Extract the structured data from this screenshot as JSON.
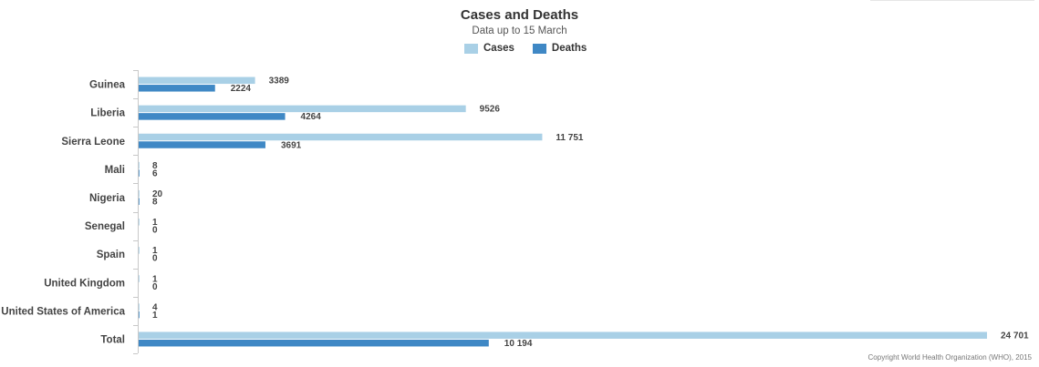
{
  "chart_data": {
    "type": "bar",
    "orientation": "horizontal",
    "title": "Cases and Deaths",
    "subtitle": "Data up to 15 March",
    "categories": [
      "Guinea",
      "Liberia",
      "Sierra Leone",
      "Mali",
      "Nigeria",
      "Senegal",
      "Spain",
      "United Kingdom",
      "United States of America",
      "Total"
    ],
    "series": [
      {
        "name": "Cases",
        "color": "#a9d0e6",
        "values": [
          3389,
          9526,
          11751,
          8,
          20,
          1,
          1,
          1,
          4,
          24701
        ],
        "labels": [
          "3389",
          "9526",
          "11 751",
          "8",
          "20",
          "1",
          "1",
          "1",
          "4",
          "24 701"
        ]
      },
      {
        "name": "Deaths",
        "color": "#3f88c5",
        "values": [
          2224,
          4264,
          3691,
          6,
          8,
          0,
          0,
          0,
          1,
          10194
        ],
        "labels": [
          "2224",
          "4264",
          "3691",
          "6",
          "8",
          "0",
          "0",
          "0",
          "1",
          "10 194"
        ]
      }
    ],
    "xlim": [
      0,
      24701
    ],
    "grid": false,
    "legend_position": "top-center"
  },
  "footer": {
    "copyright": "Copyright World Health Organization (WHO), 2015"
  }
}
